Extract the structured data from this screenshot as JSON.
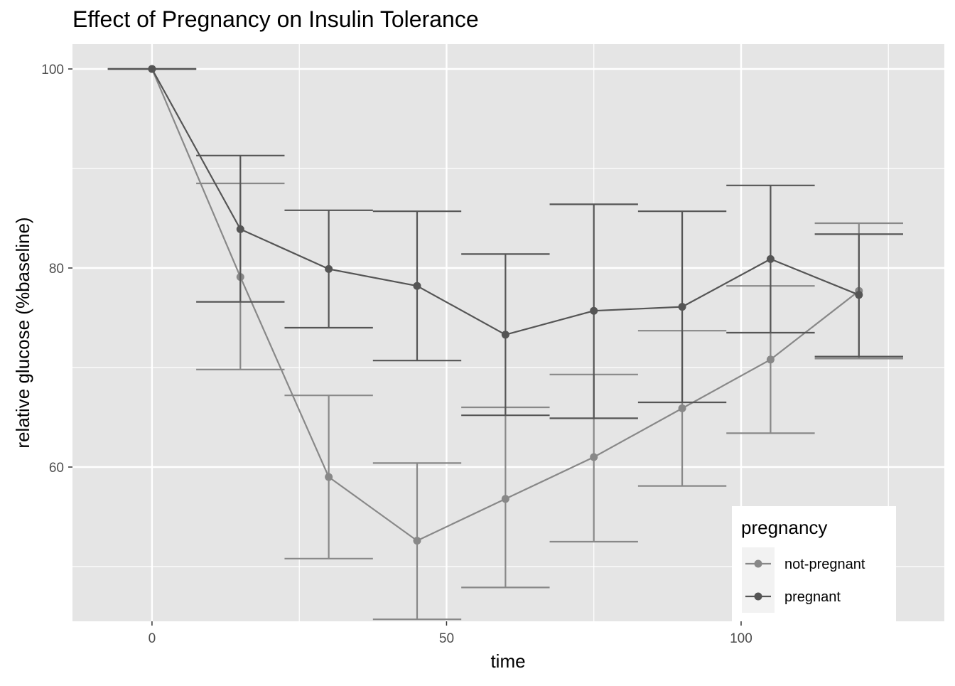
{
  "chart_data": {
    "type": "line",
    "title": "Effect of Pregnancy on Insulin Tolerance",
    "xlabel": "time",
    "ylabel": "relative glucose (%baseline)",
    "xlim": [
      -13.5,
      134.5
    ],
    "ylim": [
      44.5,
      102.5
    ],
    "x_ticks": [
      0,
      50,
      100
    ],
    "x_minor_ticks": [
      25,
      75,
      125
    ],
    "y_ticks": [
      60,
      80,
      100
    ],
    "y_minor_ticks": [
      50,
      70,
      90
    ],
    "x_tick_labels": [
      "0",
      "50",
      "100"
    ],
    "y_tick_labels": [
      "60",
      "80",
      "100"
    ],
    "grid": true,
    "errorbar_halfwidth": 7.5,
    "panel_background": "#e5e5e5",
    "grid_color": "#ffffff",
    "legend": {
      "title": "pregnancy",
      "position": "bottom-right-inside"
    },
    "series": [
      {
        "name": "not-pregnant",
        "color": "#888888",
        "x": [
          0,
          15,
          30,
          45,
          60,
          75,
          90,
          105,
          120
        ],
        "values": [
          100,
          79.1,
          59.0,
          52.6,
          56.8,
          61.0,
          65.9,
          70.8,
          77.7
        ],
        "err_low": [
          100,
          69.8,
          50.8,
          44.7,
          47.9,
          52.5,
          58.1,
          63.4,
          70.9
        ],
        "err_high": [
          100,
          88.5,
          67.2,
          60.4,
          66.0,
          69.3,
          73.7,
          78.2,
          84.5
        ]
      },
      {
        "name": "pregnant",
        "color": "#555555",
        "x": [
          0,
          15,
          30,
          45,
          60,
          75,
          90,
          105,
          120
        ],
        "values": [
          100,
          83.9,
          79.9,
          78.2,
          73.3,
          75.7,
          76.1,
          80.9,
          77.3
        ],
        "err_low": [
          100,
          76.6,
          74.0,
          70.7,
          65.2,
          64.9,
          66.5,
          73.5,
          71.1
        ],
        "err_high": [
          100,
          91.3,
          85.8,
          85.7,
          81.4,
          86.4,
          85.7,
          88.3,
          83.4
        ]
      }
    ]
  }
}
